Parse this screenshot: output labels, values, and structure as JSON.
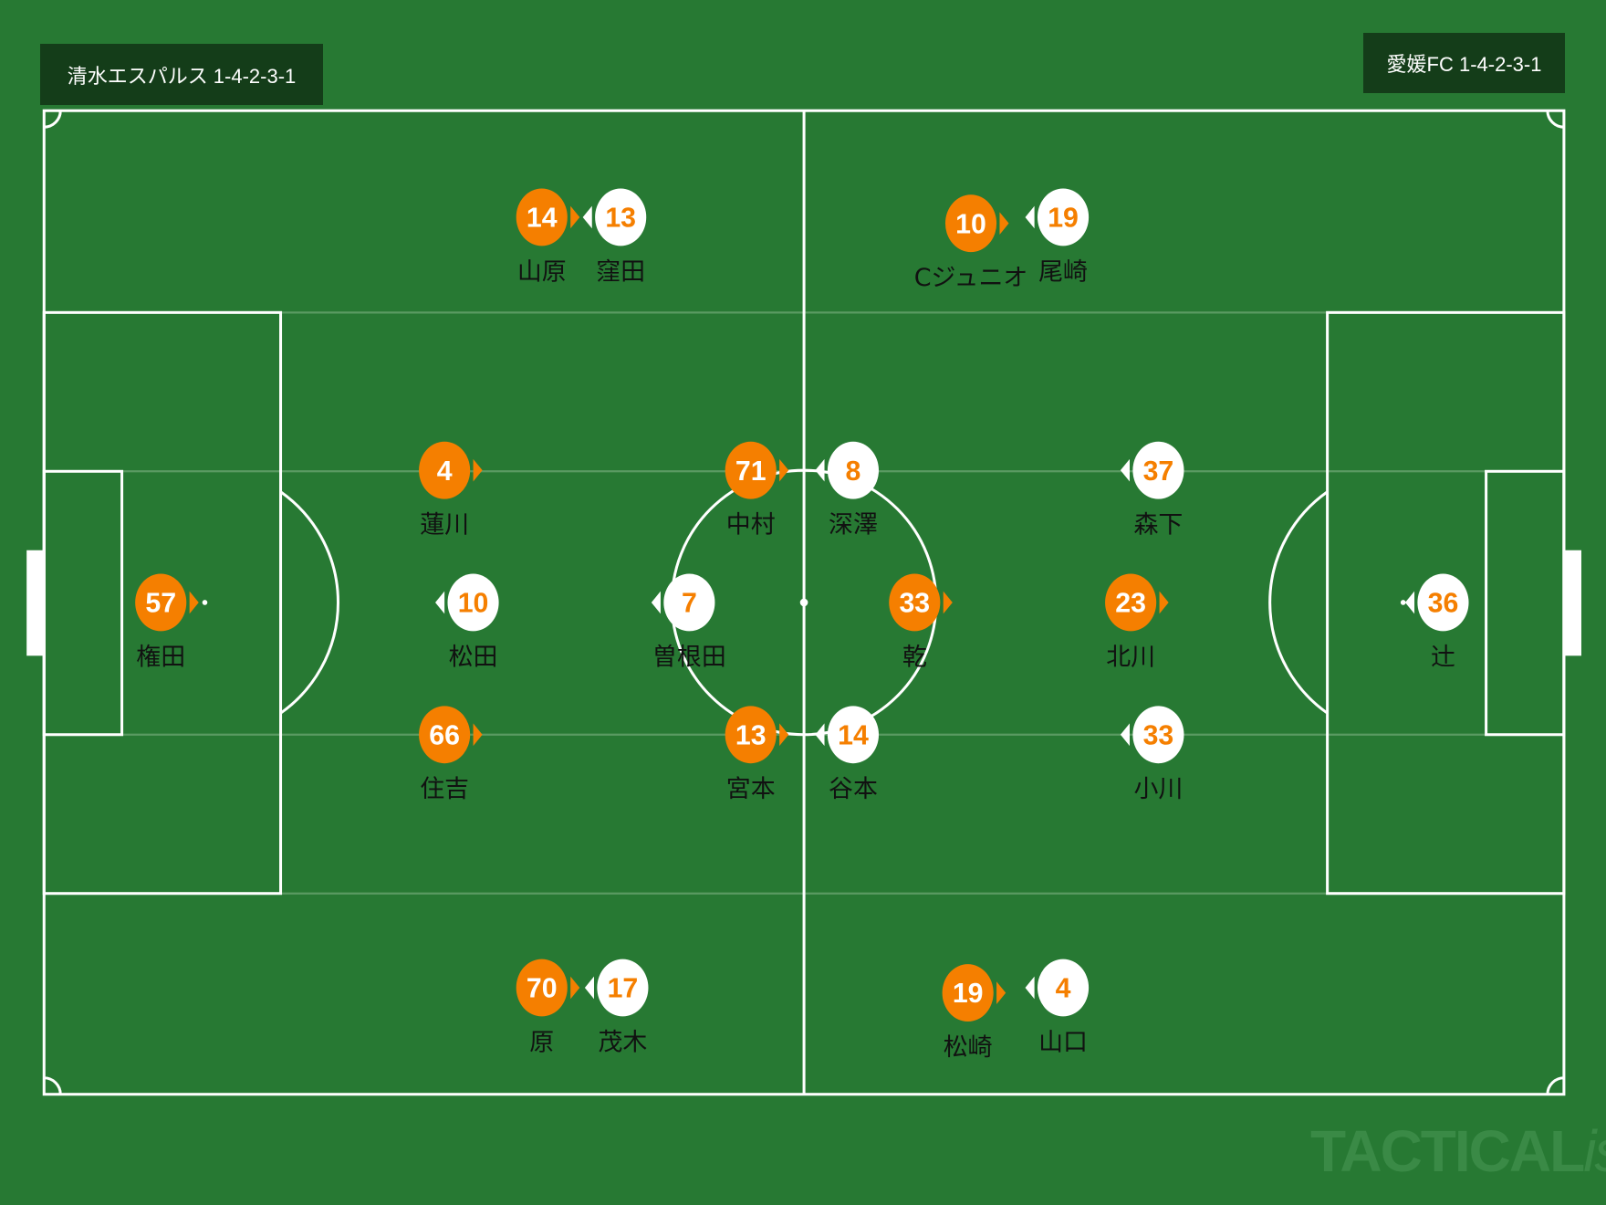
{
  "home": {
    "label": "清水エスパルス 1-4-2-3-1",
    "color": "#f57f00",
    "players": [
      {
        "number": "57",
        "name": "権田"
      },
      {
        "number": "4",
        "name": "蓮川"
      },
      {
        "number": "66",
        "name": "住吉"
      },
      {
        "number": "14",
        "name": "山原"
      },
      {
        "number": "70",
        "name": "原"
      },
      {
        "number": "71",
        "name": "中村"
      },
      {
        "number": "13",
        "name": "宮本"
      },
      {
        "number": "10",
        "name": "Cジュニオ"
      },
      {
        "number": "19",
        "name": "松崎"
      },
      {
        "number": "33",
        "name": "乾"
      },
      {
        "number": "23",
        "name": "北川"
      }
    ]
  },
  "away": {
    "label": "愛媛FC 1-4-2-3-1",
    "color": "#ffffff",
    "players": [
      {
        "number": "36",
        "name": "辻"
      },
      {
        "number": "37",
        "name": "森下"
      },
      {
        "number": "33",
        "name": "小川"
      },
      {
        "number": "19",
        "name": "尾崎"
      },
      {
        "number": "4",
        "name": "山口"
      },
      {
        "number": "8",
        "name": "深澤"
      },
      {
        "number": "14",
        "name": "谷本"
      },
      {
        "number": "13",
        "name": "窪田"
      },
      {
        "number": "17",
        "name": "茂木"
      },
      {
        "number": "7",
        "name": "曽根田"
      },
      {
        "number": "10",
        "name": "松田"
      }
    ]
  },
  "pitch_color": "#277933",
  "watermark": {
    "main": "TACTICAL",
    "suffix": "ista"
  }
}
